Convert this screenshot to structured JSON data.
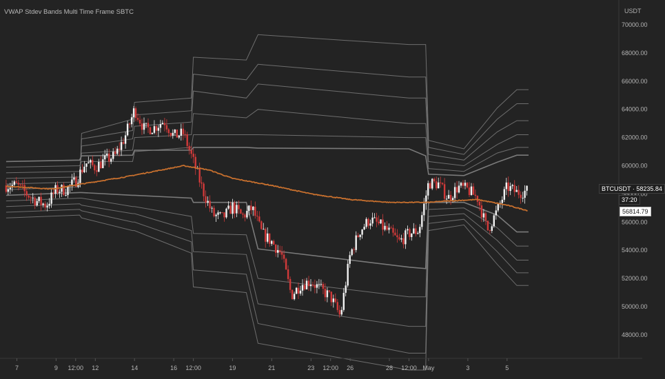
{
  "header": {
    "title": "VWAP Stdev Bands Multi Time Frame SBTC",
    "unit": "USDT"
  },
  "price_tags": {
    "symbol_price": "BTCUSDT · 58235.84",
    "countdown": "37:20",
    "vwap_price": "56814.79"
  },
  "colors": {
    "background": "#232323",
    "band": "#7b7b7b",
    "band_mid": "#8a8a8a",
    "vwap": "#c8702e",
    "candle_up": "#f2f2f2",
    "candle_down": "#d23a3a"
  },
  "chart_data": {
    "type": "line",
    "title": "VWAP Stdev Bands Multi Time Frame SBTC",
    "symbol": "BTCUSDT",
    "unit": "USDT",
    "ylim": [
      47000,
      70800
    ],
    "y_ticks": [
      48000,
      50000,
      52000,
      54000,
      56000,
      58000,
      60000,
      62000,
      64000,
      66000,
      68000,
      70000
    ],
    "x_ticks": [
      "7",
      "9",
      "12:00",
      "12",
      "14",
      "16",
      "12:00",
      "19",
      "21",
      "23",
      "12:00",
      "26",
      "28",
      "12:00",
      "May",
      "3",
      "5"
    ],
    "x_tick_pos": [
      0,
      2,
      3,
      4,
      6,
      8,
      9,
      11,
      13,
      15,
      16,
      17,
      19,
      20,
      21,
      23,
      25
    ],
    "x_range": [
      -0.55,
      26.1
    ],
    "grid": false,
    "last_price": 58235.84,
    "vwap_last": 56814.79,
    "candles": {
      "type": "candlestick",
      "x": [
        0,
        0.5,
        1,
        1.5,
        2,
        2.5,
        3,
        3.5,
        4,
        4.5,
        5,
        5.5,
        6,
        6.5,
        7,
        7.5,
        8,
        8.5,
        9,
        9.5,
        10,
        10.5,
        11,
        11.5,
        12,
        12.5,
        13,
        13.5,
        14,
        14.5,
        15,
        15.5,
        16,
        16.5,
        17,
        17.5,
        18,
        18.5,
        19,
        19.5,
        20,
        20.5,
        21,
        21.5,
        22,
        22.5,
        23,
        23.5,
        24,
        24.5,
        25,
        25.5,
        26
      ],
      "close": [
        58600,
        58000,
        57500,
        57200,
        58300,
        58300,
        58900,
        60200,
        59900,
        60400,
        60700,
        62000,
        64000,
        62600,
        62700,
        63200,
        62100,
        62300,
        60300,
        58200,
        56500,
        56300,
        57100,
        56400,
        57000,
        55200,
        54600,
        53700,
        50800,
        51600,
        51800,
        51200,
        50700,
        49300,
        53700,
        55400,
        56200,
        55800,
        55300,
        54600,
        55200,
        55400,
        58800,
        58700,
        57700,
        58500,
        58300,
        57700,
        55400,
        56800,
        58500,
        58100,
        58200
      ]
    },
    "series": [
      {
        "name": "VWAP",
        "x": [
          -0.55,
          1.8,
          3.5,
          5.5,
          7,
          8.5,
          9.8,
          11,
          13,
          15,
          17,
          19,
          21,
          22,
          23.5,
          25,
          26.1
        ],
        "values": [
          58550,
          58350,
          58750,
          59200,
          59600,
          60000,
          59700,
          59100,
          58600,
          58000,
          57600,
          57400,
          57400,
          57500,
          57600,
          57200,
          56800
        ]
      }
    ],
    "bands": [
      {
        "x": [
          -0.55,
          3.2,
          3.3,
          5.9,
          6.0,
          8.9,
          9.0,
          11.7,
          12.3,
          20.0,
          20.85,
          21.0,
          22.8,
          24.5,
          25.5,
          26.1
        ],
        "values": [
          60300,
          60400,
          60700,
          60750,
          61100,
          61100,
          61300,
          61300,
          61250,
          61200,
          60700,
          59400,
          59300,
          60250,
          60750,
          60750
        ]
      },
      {
        "x": [
          -0.55,
          3.2,
          3.3,
          5.9,
          6.0,
          8.9,
          9.0,
          11.7,
          12.3,
          20.0,
          20.85,
          21.0,
          22.8,
          24.5,
          25.5,
          26.1
        ],
        "values": [
          59900,
          60000,
          60300,
          60300,
          61000,
          61300,
          62200,
          62200,
          62200,
          62000,
          62000,
          59800,
          59600,
          60900,
          61300,
          61300
        ]
      },
      {
        "x": [
          -0.55,
          3.2,
          3.3,
          5.9,
          6.0,
          8.9,
          9.0,
          11.7,
          12.3,
          20.0,
          20.85,
          21.0,
          22.8,
          24.5,
          25.5,
          26.1
        ],
        "values": [
          59500,
          59600,
          60900,
          61100,
          62000,
          62200,
          63700,
          63400,
          64000,
          63000,
          63000,
          60300,
          60000,
          61500,
          62200,
          62200
        ]
      },
      {
        "x": [
          -0.55,
          3.2,
          3.3,
          5.9,
          6.0,
          8.9,
          9.0,
          11.7,
          12.3,
          20.0,
          20.85,
          21.0,
          22.8,
          24.5,
          25.5,
          26.1
        ],
        "values": [
          59100,
          59200,
          61400,
          61900,
          62800,
          63100,
          65300,
          64800,
          65800,
          64800,
          64800,
          60800,
          60400,
          62400,
          63200,
          63200
        ]
      },
      {
        "x": [
          -0.55,
          3.2,
          3.3,
          5.9,
          6.0,
          8.9,
          9.0,
          11.7,
          12.3,
          20.0,
          20.85,
          21.0,
          22.8,
          24.5,
          25.5,
          26.1
        ],
        "values": [
          58700,
          58850,
          61900,
          62500,
          63600,
          63900,
          66500,
          66100,
          67200,
          66300,
          66300,
          61300,
          60800,
          63300,
          64400,
          64400
        ]
      },
      {
        "x": [
          -0.55,
          3.2,
          3.3,
          5.9,
          6.0,
          8.9,
          9.0,
          11.7,
          12.3,
          20.0,
          20.85,
          21.0,
          22.8,
          24.5,
          25.5,
          26.1
        ],
        "values": [
          58300,
          58500,
          62300,
          63300,
          64500,
          64800,
          67700,
          67500,
          69300,
          68600,
          68600,
          61800,
          61200,
          64100,
          65400,
          65400
        ]
      },
      {
        "x": [
          -0.55,
          3.2,
          3.3,
          5.9,
          6.0,
          8.9,
          9.0,
          11.7,
          12.3,
          20.0,
          20.85,
          21.0,
          22.8,
          24.5,
          25.5,
          26.1
        ],
        "values": [
          57900,
          58100,
          58100,
          57900,
          57900,
          57700,
          57400,
          57400,
          54100,
          52800,
          52700,
          57400,
          57400,
          56500,
          55300,
          55300
        ]
      },
      {
        "x": [
          -0.55,
          3.2,
          3.3,
          5.9,
          6.0,
          8.9,
          9.0,
          11.7,
          12.3,
          20.0,
          20.85,
          21.0,
          22.8,
          24.5,
          25.5,
          26.1
        ],
        "values": [
          57500,
          57700,
          57700,
          57100,
          57100,
          56400,
          55200,
          55100,
          52000,
          50700,
          50700,
          56900,
          57000,
          55600,
          54300,
          54300
        ]
      },
      {
        "x": [
          -0.55,
          3.2,
          3.3,
          5.9,
          6.0,
          8.9,
          9.0,
          11.7,
          12.3,
          20.0,
          20.85,
          21.0,
          22.8,
          24.5,
          25.5,
          26.1
        ],
        "values": [
          57100,
          57300,
          57200,
          56600,
          56600,
          55400,
          53900,
          53700,
          50200,
          48600,
          48600,
          56400,
          56600,
          54700,
          53300,
          53300
        ]
      },
      {
        "x": [
          -0.55,
          3.2,
          3.3,
          5.9,
          6.0,
          8.9,
          9.0,
          11.7,
          12.3,
          20.0,
          20.85,
          21.0,
          22.8,
          24.5,
          25.5,
          26.1
        ],
        "values": [
          56700,
          56900,
          56800,
          56000,
          56000,
          54600,
          52600,
          52300,
          48800,
          46700,
          46700,
          55900,
          56200,
          53900,
          52400,
          52400
        ]
      },
      {
        "x": [
          -0.55,
          3.2,
          3.3,
          5.9,
          6.0,
          8.9,
          9.0,
          11.7,
          12.3,
          20.0,
          20.85,
          21.0,
          22.8,
          24.5,
          25.5,
          26.1
        ],
        "values": [
          56300,
          56500,
          56300,
          55400,
          55400,
          53800,
          51400,
          51000,
          47400,
          45500,
          45500,
          55400,
          55800,
          53000,
          51500,
          51500
        ]
      }
    ]
  }
}
